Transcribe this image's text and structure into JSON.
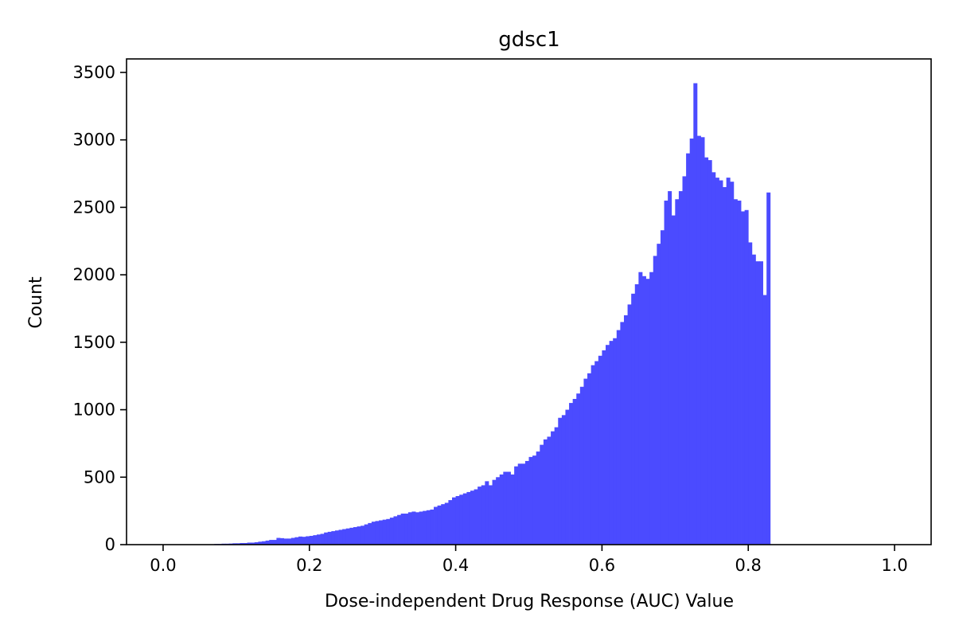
{
  "chart_data": {
    "type": "bar",
    "title": "gdsc1",
    "xlabel": "Dose-independent Drug Response (AUC) Value",
    "ylabel": "Count",
    "xlim": [
      -0.05,
      1.05
    ],
    "ylim": [
      0,
      3600
    ],
    "xticks": [
      "0.0",
      "0.2",
      "0.4",
      "0.6",
      "0.8",
      "1.0"
    ],
    "xtick_values": [
      0.0,
      0.2,
      0.4,
      0.6,
      0.8,
      1.0
    ],
    "yticks": [
      "0",
      "500",
      "1000",
      "1500",
      "2000",
      "2500",
      "3000",
      "3500"
    ],
    "ytick_values": [
      0,
      500,
      1000,
      1500,
      2000,
      2500,
      3000,
      3500
    ],
    "bar_color": "#4b4bff",
    "grid": false,
    "bins": {
      "start": 0.0,
      "width": 0.005
    },
    "counts": [
      0,
      0,
      0,
      0,
      0,
      0,
      0,
      0,
      0,
      0,
      0,
      0,
      0,
      0,
      5,
      5,
      7,
      7,
      8,
      10,
      10,
      12,
      12,
      15,
      15,
      18,
      22,
      25,
      30,
      35,
      35,
      50,
      48,
      45,
      45,
      50,
      55,
      60,
      58,
      62,
      65,
      70,
      75,
      80,
      90,
      95,
      100,
      105,
      110,
      115,
      120,
      125,
      130,
      135,
      140,
      150,
      160,
      170,
      175,
      180,
      185,
      190,
      200,
      210,
      220,
      230,
      230,
      240,
      245,
      240,
      245,
      250,
      255,
      260,
      280,
      290,
      300,
      310,
      330,
      350,
      360,
      370,
      380,
      390,
      400,
      410,
      430,
      440,
      470,
      440,
      480,
      500,
      520,
      540,
      540,
      520,
      580,
      600,
      600,
      620,
      650,
      660,
      690,
      740,
      780,
      800,
      840,
      870,
      940,
      960,
      1000,
      1050,
      1080,
      1120,
      1170,
      1230,
      1270,
      1330,
      1360,
      1400,
      1440,
      1480,
      1510,
      1530,
      1590,
      1650,
      1700,
      1780,
      1860,
      1930,
      2020,
      1990,
      1970,
      2020,
      2140,
      2230,
      2330,
      2550,
      2620,
      2440,
      2560,
      2620,
      2730,
      2900,
      3010,
      3420,
      3030,
      3020,
      2870,
      2850,
      2760,
      2720,
      2700,
      2650,
      2720,
      2690,
      2560,
      2550,
      2470,
      2480,
      2240,
      2150,
      2100,
      2100,
      1850,
      2610
    ]
  }
}
